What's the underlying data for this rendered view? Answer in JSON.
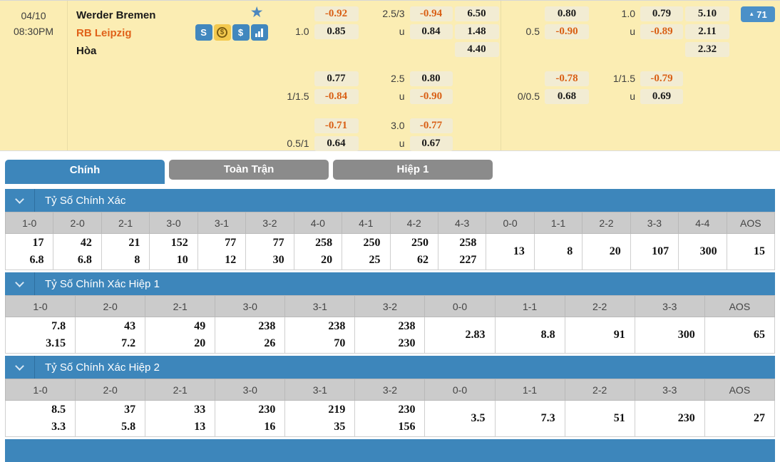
{
  "match": {
    "date": "04/10",
    "time": "08:30PM",
    "home_team": "Werder Bremen",
    "away_team": "RB Leipzig",
    "draw_label": "Hòa",
    "favorite_icon_glyph": "★",
    "team_icons": [
      {
        "name": "sportsbook-icon",
        "glyph": "S",
        "style": "blue"
      },
      {
        "name": "coin-icon",
        "glyph": "$",
        "style": "yellow"
      },
      {
        "name": "dollar-icon",
        "glyph": "$",
        "style": "blue"
      },
      {
        "name": "stats-icon",
        "glyph": "bars",
        "style": "blue"
      }
    ],
    "rating_button": {
      "arrow": "▲",
      "value": "71"
    },
    "under_label": "u",
    "odds_left": {
      "blocks": [
        {
          "hdp_line": "1.0",
          "hdp": [
            "-0.92",
            "0.85"
          ],
          "ou_line": "2.5/3",
          "ou": [
            "-0.94",
            "0.84"
          ],
          "one_x_two": [
            "6.50",
            "1.48",
            "4.40"
          ]
        },
        {
          "hdp_line": "1/1.5",
          "hdp": [
            "0.77",
            "-0.84"
          ],
          "ou_line": "2.5",
          "ou": [
            "0.80",
            "-0.90"
          ]
        },
        {
          "hdp_line": "0.5/1",
          "hdp": [
            "-0.71",
            "0.64"
          ],
          "ou_line": "3.0",
          "ou": [
            "-0.77",
            "0.67"
          ]
        }
      ]
    },
    "odds_right": {
      "blocks": [
        {
          "hdp_line": "0.5",
          "hdp": [
            "0.80",
            "-0.90"
          ],
          "ou_line": "1.0",
          "ou": [
            "0.79",
            "-0.89"
          ],
          "one_x_two": [
            "5.10",
            "2.11",
            "2.32"
          ]
        },
        {
          "hdp_line": "0/0.5",
          "hdp": [
            "-0.78",
            "0.68"
          ],
          "ou_line": "1/1.5",
          "ou": [
            "-0.79",
            "0.69"
          ]
        }
      ]
    }
  },
  "tabs": [
    {
      "label": "Chính",
      "active": true
    },
    {
      "label": "Toàn Trận",
      "active": false
    },
    {
      "label": "Hiệp 1",
      "active": false
    }
  ],
  "sections": [
    {
      "title": "Tỷ Số Chính Xác",
      "columns": [
        "1-0",
        "2-0",
        "2-1",
        "3-0",
        "3-1",
        "3-2",
        "4-0",
        "4-1",
        "4-2",
        "4-3",
        "0-0",
        "1-1",
        "2-2",
        "3-3",
        "4-4",
        "AOS"
      ],
      "values": [
        [
          "17",
          "6.8"
        ],
        [
          "42",
          "6.8"
        ],
        [
          "21",
          "8"
        ],
        [
          "152",
          "10"
        ],
        [
          "77",
          "12"
        ],
        [
          "77",
          "30"
        ],
        [
          "258",
          "20"
        ],
        [
          "250",
          "25"
        ],
        [
          "250",
          "62"
        ],
        [
          "258",
          "227"
        ],
        [
          "13"
        ],
        [
          "8"
        ],
        [
          "20"
        ],
        [
          "107"
        ],
        [
          "300"
        ],
        [
          "15"
        ]
      ]
    },
    {
      "title": "Tỷ Số Chính Xác Hiệp 1",
      "columns": [
        "1-0",
        "2-0",
        "2-1",
        "3-0",
        "3-1",
        "3-2",
        "0-0",
        "1-1",
        "2-2",
        "3-3",
        "AOS"
      ],
      "values": [
        [
          "7.8",
          "3.15"
        ],
        [
          "43",
          "7.2"
        ],
        [
          "49",
          "20"
        ],
        [
          "238",
          "26"
        ],
        [
          "238",
          "70"
        ],
        [
          "238",
          "230"
        ],
        [
          "2.83"
        ],
        [
          "8.8"
        ],
        [
          "91"
        ],
        [
          "300"
        ],
        [
          "65"
        ]
      ]
    },
    {
      "title": "Tỷ Số Chính Xác Hiệp 2",
      "columns": [
        "1-0",
        "2-0",
        "2-1",
        "3-0",
        "3-1",
        "3-2",
        "0-0",
        "1-1",
        "2-2",
        "3-3",
        "AOS"
      ],
      "values": [
        [
          "8.5",
          "3.3"
        ],
        [
          "37",
          "5.8"
        ],
        [
          "33",
          "13"
        ],
        [
          "230",
          "16"
        ],
        [
          "219",
          "35"
        ],
        [
          "230",
          "156"
        ],
        [
          "3.5"
        ],
        [
          "7.3"
        ],
        [
          "51"
        ],
        [
          "230"
        ],
        [
          "27"
        ]
      ]
    }
  ],
  "colors": {
    "panel_yellow": "#FBEDB3",
    "pill_bg": "#F2ECD3",
    "odds_negative_orange": "#D95F14",
    "away_team_orange": "#E0621A",
    "accent_blue": "#3D86BB",
    "tab_gray": "#8B8B8B",
    "rating_blue": "#4B90C8",
    "table_header_gray": "#CBCBCB"
  }
}
